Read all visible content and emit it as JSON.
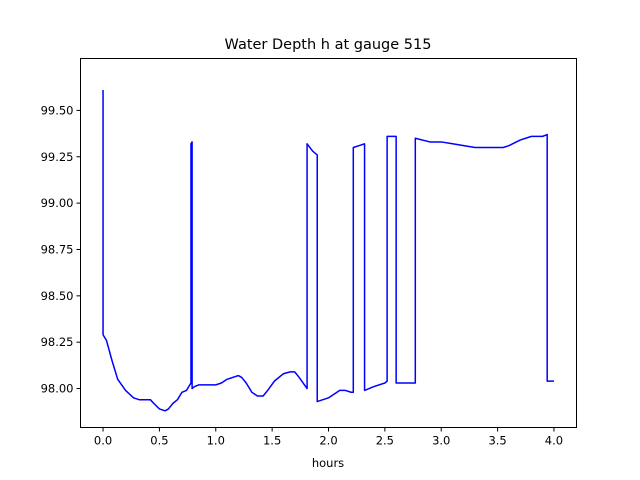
{
  "chart_data": {
    "type": "line",
    "title": "Water Depth h at gauge 515",
    "xlabel": "hours",
    "ylabel": "",
    "xlim": [
      -0.2,
      4.2
    ],
    "ylim": [
      97.79,
      99.78
    ],
    "grid": false,
    "xticks": [
      0.0,
      0.5,
      1.0,
      1.5,
      2.0,
      2.5,
      3.0,
      3.5,
      4.0
    ],
    "xtick_labels": [
      "0.0",
      "0.5",
      "1.0",
      "1.5",
      "2.0",
      "2.5",
      "3.0",
      "3.5",
      "4.0"
    ],
    "yticks": [
      98.0,
      98.25,
      98.5,
      98.75,
      99.0,
      99.25,
      99.5
    ],
    "ytick_labels": [
      "98.00",
      "98.25",
      "98.50",
      "98.75",
      "99.00",
      "99.25",
      "99.50"
    ],
    "series": [
      {
        "color": "#0000ff",
        "x": [
          0.0,
          0.0,
          0.03,
          0.08,
          0.13,
          0.2,
          0.27,
          0.32,
          0.38,
          0.42,
          0.45,
          0.5,
          0.55,
          0.58,
          0.62,
          0.66,
          0.7,
          0.74,
          0.78,
          0.78,
          0.79,
          0.79,
          0.81,
          0.85,
          0.9,
          1.0,
          1.05,
          1.1,
          1.15,
          1.2,
          1.23,
          1.27,
          1.32,
          1.37,
          1.42,
          1.46,
          1.52,
          1.6,
          1.66,
          1.7,
          1.74,
          1.81,
          1.81,
          1.86,
          1.9,
          1.9,
          1.95,
          2.0,
          2.05,
          2.1,
          2.15,
          2.2,
          2.22,
          2.22,
          2.27,
          2.32,
          2.32,
          2.4,
          2.5,
          2.52,
          2.52,
          2.6,
          2.6,
          2.7,
          2.77,
          2.77,
          2.9,
          3.0,
          3.1,
          3.2,
          3.3,
          3.4,
          3.5,
          3.55,
          3.6,
          3.7,
          3.8,
          3.9,
          3.94,
          3.94,
          4.0
        ],
        "y": [
          99.61,
          98.29,
          98.26,
          98.15,
          98.05,
          97.99,
          97.95,
          97.94,
          97.94,
          97.94,
          97.92,
          97.89,
          97.88,
          97.89,
          97.92,
          97.94,
          97.98,
          97.99,
          98.03,
          99.32,
          99.33,
          98.0,
          98.01,
          98.02,
          98.02,
          98.02,
          98.03,
          98.05,
          98.06,
          98.07,
          98.06,
          98.03,
          97.98,
          97.96,
          97.96,
          97.99,
          98.04,
          98.08,
          98.09,
          98.09,
          98.06,
          98.0,
          99.32,
          99.28,
          99.26,
          97.93,
          97.94,
          97.95,
          97.97,
          97.99,
          97.99,
          97.98,
          97.98,
          99.3,
          99.31,
          99.32,
          97.99,
          98.01,
          98.03,
          98.04,
          99.36,
          99.36,
          98.03,
          98.03,
          98.03,
          99.35,
          99.33,
          99.33,
          99.32,
          99.31,
          99.3,
          99.3,
          99.3,
          99.3,
          99.31,
          99.34,
          99.36,
          99.36,
          99.37,
          98.04,
          98.04
        ]
      }
    ]
  }
}
